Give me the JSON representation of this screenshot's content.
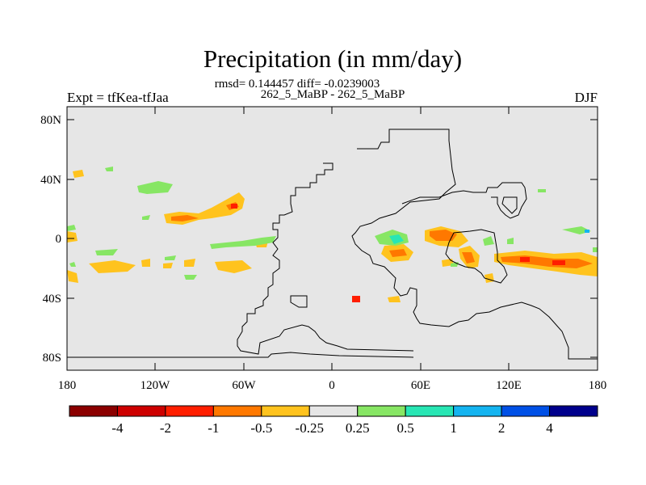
{
  "chart_data": {
    "type": "filled-contour map",
    "title": "Precipitation (in mm/day)",
    "stats_line": "rmsd= 0.144457 diff= -0.0239003",
    "subtitle": "262_5_MaBP - 262_5_MaBP",
    "left_label": "Expt = tfKea-tfJaa",
    "right_label": "DJF",
    "x_ticks": [
      "180",
      "120W",
      "60W",
      "0",
      "60E",
      "120E",
      "180"
    ],
    "y_ticks": [
      "80N",
      "40N",
      "0",
      "40S",
      "80S"
    ],
    "xlim": [
      -180,
      180
    ],
    "ylim": [
      -90,
      90
    ],
    "colorbar": {
      "colors": [
        "#8b0000",
        "#cd0000",
        "#ff1e00",
        "#ff7800",
        "#ffc31e",
        "#e6e6e6",
        "#87e664",
        "#28e6b4",
        "#14b4f0",
        "#0050e6",
        "#00008c"
      ],
      "labels": [
        "-4",
        "-2",
        "-1",
        "-0.5",
        "-0.25",
        "0.25",
        "0.5",
        "1",
        "2",
        "4"
      ]
    }
  }
}
